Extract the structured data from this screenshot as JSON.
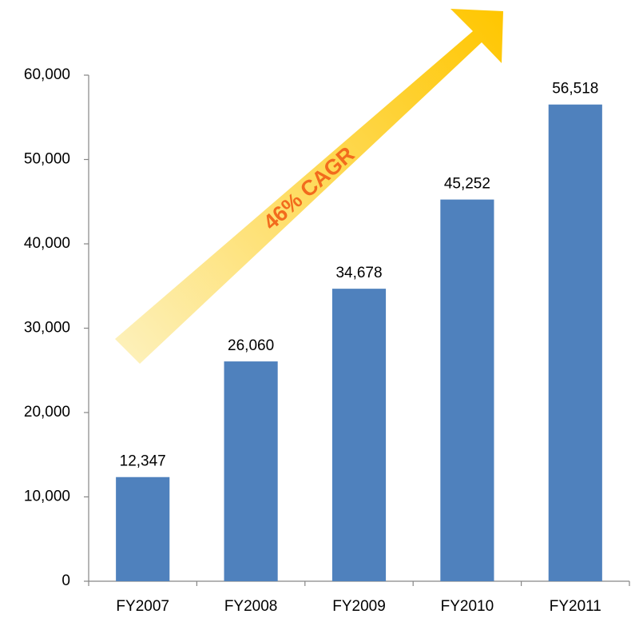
{
  "chart_data": {
    "type": "bar",
    "title": "",
    "xlabel": "",
    "ylabel": "",
    "categories": [
      "FY2007",
      "FY2008",
      "FY2009",
      "FY2010",
      "FY2011"
    ],
    "values": [
      12347,
      26060,
      34678,
      45252,
      56518
    ],
    "value_labels": [
      "12,347",
      "26,060",
      "34,678",
      "45,252",
      "56,518"
    ],
    "ylim": [
      0,
      60000
    ],
    "yticks": [
      0,
      10000,
      20000,
      30000,
      40000,
      50000,
      60000
    ],
    "ytick_labels": [
      "0",
      "10,000",
      "20,000",
      "30,000",
      "40,000",
      "50,000",
      "60,000"
    ],
    "grid": false,
    "legend": "none",
    "bar_color": "#4F81BD",
    "annotation": {
      "text": "46% CAGR",
      "text_color": "#F26B1D",
      "arrow_color_start": "#FDF0B8",
      "arrow_color_end": "#FFC600"
    }
  }
}
